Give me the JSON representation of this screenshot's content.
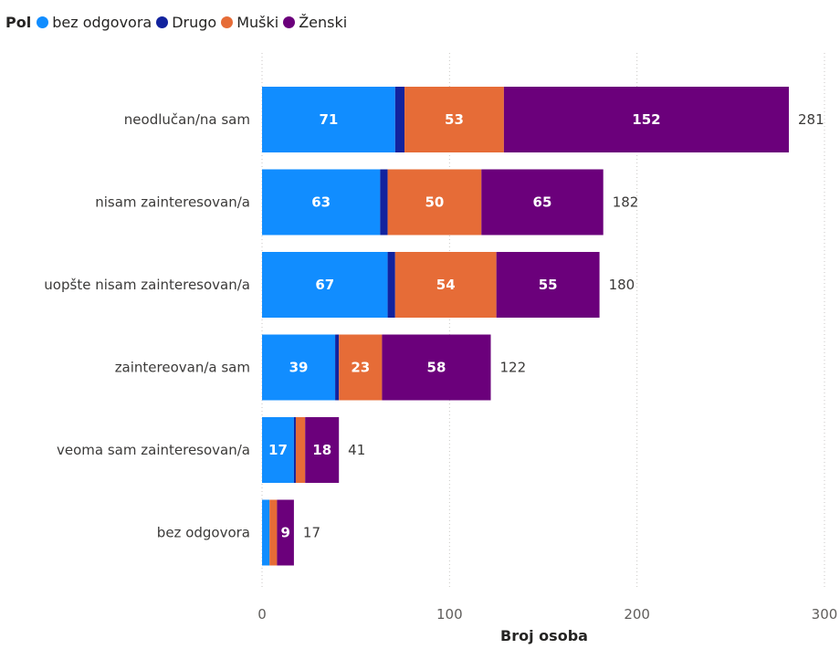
{
  "chart_data": {
    "type": "bar",
    "orientation": "horizontal",
    "stacked": true,
    "legend_title": "Pol",
    "legend_position": "top-left",
    "xlabel": "Broj osoba",
    "xlim": [
      0,
      300
    ],
    "xticks": [
      0,
      100,
      200,
      300
    ],
    "grid": "vertical dotted",
    "categories": [
      "neodlučan/na sam",
      "nisam zainteresovan/a",
      "uopšte nisam zainteresovan/a",
      "zaintereovan/a sam",
      "veoma sam zainteresovan/a",
      "bez odgovora"
    ],
    "series": [
      {
        "name": "bez odgovora",
        "color": "#118DFF",
        "values": [
          71,
          63,
          67,
          39,
          17,
          4
        ]
      },
      {
        "name": "Drugo",
        "color": "#12239E",
        "values": [
          5,
          4,
          4,
          2,
          1,
          0
        ]
      },
      {
        "name": "Muški",
        "color": "#E66C37",
        "values": [
          53,
          50,
          54,
          23,
          5,
          4
        ]
      },
      {
        "name": "Ženski",
        "color": "#6B007B",
        "values": [
          152,
          65,
          55,
          58,
          18,
          9
        ]
      }
    ],
    "data_labels": [
      [
        "71",
        "",
        "53",
        "152"
      ],
      [
        "63",
        "",
        "50",
        "65"
      ],
      [
        "67",
        "",
        "54",
        "55"
      ],
      [
        "39",
        "",
        "23",
        "58"
      ],
      [
        "17",
        "",
        "",
        "18"
      ],
      [
        "",
        "",
        "",
        "9"
      ]
    ],
    "totals": [
      281,
      182,
      180,
      122,
      41,
      17
    ]
  }
}
